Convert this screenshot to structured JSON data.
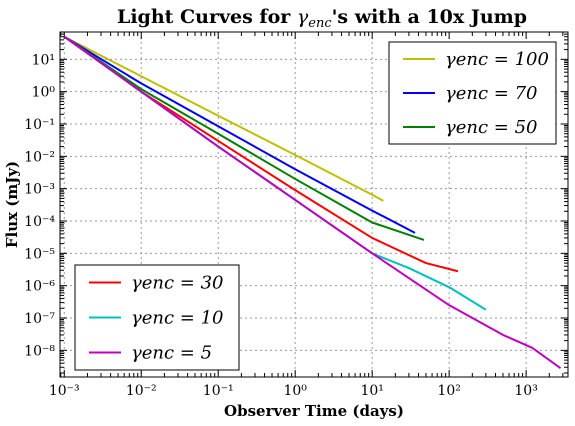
{
  "chart_data": {
    "type": "line",
    "title": "Light Curves for γenc's with a 10x Jump",
    "xlabel": "Observer Time (days)",
    "ylabel": "Flux (mJy)",
    "xscale": "log",
    "yscale": "log",
    "xlim": [
      0.00088,
      3500
    ],
    "ylim": [
      1.5e-09,
      70
    ],
    "grid": true,
    "x_tick_labels": [
      "10⁻³",
      "10⁻²",
      "10⁻¹",
      "10⁰",
      "10¹",
      "10²",
      "10³"
    ],
    "x_tick_values": [
      0.001,
      0.01,
      0.1,
      1,
      10,
      100,
      1000
    ],
    "y_tick_labels": [
      "10⁻⁸",
      "10⁻⁷",
      "10⁻⁶",
      "10⁻⁵",
      "10⁻⁴",
      "10⁻³",
      "10⁻²",
      "10⁻¹",
      "10⁰",
      "10¹"
    ],
    "y_tick_values": [
      1e-08,
      1e-07,
      1e-06,
      1e-05,
      0.0001,
      0.001,
      0.01,
      0.1,
      1,
      10
    ],
    "legends": [
      {
        "placement": "upper-right",
        "series": [
          0,
          1,
          2
        ]
      },
      {
        "placement": "lower-left",
        "series": [
          3,
          4,
          5
        ]
      }
    ],
    "series": [
      {
        "name": "γenc = 100",
        "color": "#bfbf00",
        "points": [
          [
            0.001,
            50
          ],
          [
            0.01,
            3.0
          ],
          [
            0.1,
            0.18
          ],
          [
            1,
            0.011
          ],
          [
            10,
            0.00065
          ],
          [
            14,
            0.00042
          ]
        ]
      },
      {
        "name": "γenc = 70",
        "color": "#0000ff",
        "points": [
          [
            0.001,
            50
          ],
          [
            0.01,
            1.8
          ],
          [
            0.1,
            0.085
          ],
          [
            1,
            0.004
          ],
          [
            10,
            0.00021
          ],
          [
            36,
            4.3e-05
          ]
        ]
      },
      {
        "name": "γenc = 50",
        "color": "#008000",
        "points": [
          [
            0.001,
            50
          ],
          [
            0.01,
            1.2
          ],
          [
            0.1,
            0.05
          ],
          [
            1,
            0.002
          ],
          [
            10,
            9e-05
          ],
          [
            47,
            2.6e-05
          ]
        ]
      },
      {
        "name": "γenc = 30",
        "color": "#ff0000",
        "points": [
          [
            0.001,
            50
          ],
          [
            0.01,
            1.0
          ],
          [
            0.1,
            0.03
          ],
          [
            1,
            0.0009
          ],
          [
            10,
            3e-05
          ],
          [
            50,
            5e-06
          ],
          [
            130,
            2.8e-06
          ]
        ]
      },
      {
        "name": "γenc = 10",
        "color": "#00bfbf",
        "points": [
          [
            0.001,
            50
          ],
          [
            0.01,
            1.0
          ],
          [
            0.1,
            0.02
          ],
          [
            1,
            0.00045
          ],
          [
            10,
            1e-05
          ],
          [
            30,
            3.5e-06
          ],
          [
            100,
            9e-07
          ],
          [
            300,
            1.8e-07
          ]
        ]
      },
      {
        "name": "γenc = 5",
        "color": "#bf00bf",
        "points": [
          [
            0.001,
            50
          ],
          [
            0.01,
            1.0
          ],
          [
            0.1,
            0.02
          ],
          [
            1,
            0.00045
          ],
          [
            10,
            1e-05
          ],
          [
            100,
            2.5e-07
          ],
          [
            500,
            3e-08
          ],
          [
            1200,
            1.2e-08
          ],
          [
            2800,
            2.8e-09
          ]
        ]
      }
    ]
  }
}
